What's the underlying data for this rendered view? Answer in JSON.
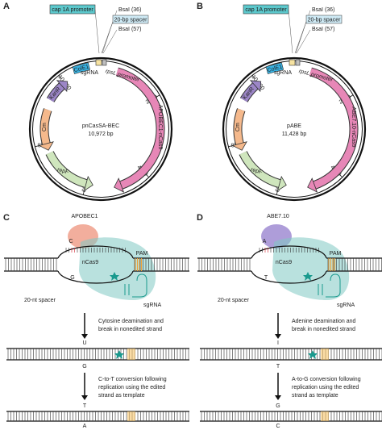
{
  "plasmids": [
    {
      "panel": "A",
      "callouts": {
        "promoter": "cap 1A promoter",
        "bsai_1": "BsaI (36)",
        "spacer": "20-bp spacer",
        "bsai_2": "BsaI (57)"
      },
      "features": {
        "cole1": "ColE1",
        "rpsl": "rpsL promoter",
        "sgrna": "sgRNA",
        "kanr": "KanR",
        "editor": "APOBEC1-nCas9",
        "cm": "Cm",
        "repf": "repF"
      },
      "name": "pnCasSA-BEC",
      "size": "10,972 bp",
      "ticks": [
        "10,000",
        "2000",
        "4000",
        "6000",
        "8000"
      ]
    },
    {
      "panel": "B",
      "callouts": {
        "promoter": "cap 1A promoter",
        "bsai_1": "BsaI (36)",
        "spacer": "20-bp spacer",
        "bsai_2": "BsaI (57)"
      },
      "features": {
        "cole1": "ColE1",
        "rpsl": "rpsL promoter",
        "sgrna": "sgRNA",
        "kanr": "KanR",
        "editor": "ABE7.10-nCas9",
        "cm": "Cm",
        "repf": "repF"
      },
      "name": "pABE",
      "size": "11,428 bp",
      "ticks": [
        "10,000",
        "2000",
        "4000",
        "6000",
        "8000"
      ]
    }
  ],
  "editing": [
    {
      "panel": "C",
      "enzyme": "APOBEC1",
      "target_base": "C",
      "pam": "PAM",
      "nickase": "nCas9",
      "opposite_base": "G",
      "spacer": "20-nt spacer",
      "guide": "sgRNA",
      "step_1": [
        "Cytosine deamination and",
        "break in nonedited strand"
      ],
      "intermediate_top": "U",
      "intermediate_bottom": "G",
      "step_2": [
        "C-to-T conversion following",
        "replication using the edited",
        "strand as template"
      ],
      "product_top": "T",
      "product_bottom": "A"
    },
    {
      "panel": "D",
      "enzyme": "ABE7.10",
      "target_base": "A",
      "pam": "PAM",
      "nickase": "nCas9",
      "opposite_base": "T",
      "spacer": "20-nt spacer",
      "guide": "sgRNA",
      "step_1": [
        "Adenine deamination and",
        "break in nonedited strand"
      ],
      "intermediate_top": "I",
      "intermediate_bottom": "T",
      "step_2": [
        "A-to-G conversion following",
        "replication using the edited",
        "strand as template"
      ],
      "product_top": "G",
      "product_bottom": "C"
    }
  ]
}
